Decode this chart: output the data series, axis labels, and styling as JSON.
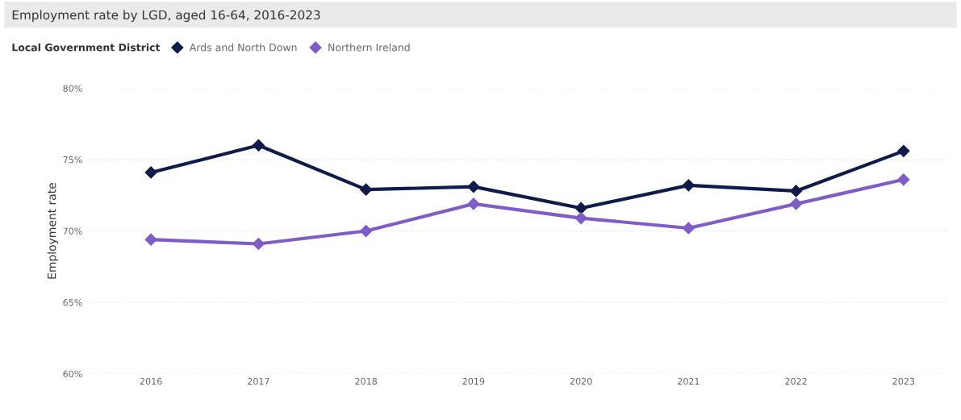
{
  "chart_data": {
    "type": "line",
    "title": "Employment rate by LGD, aged 16-64, 2016-2023",
    "legend_title": "Local Government District",
    "ylabel": "Employment rate",
    "categories": [
      "2016",
      "2017",
      "2018",
      "2019",
      "2020",
      "2021",
      "2022",
      "2023"
    ],
    "series": [
      {
        "name": "Ards and North Down",
        "color": "#0f1b4a",
        "values": [
          74.1,
          76.0,
          72.9,
          73.1,
          71.6,
          73.2,
          72.8,
          75.6
        ]
      },
      {
        "name": "Northern Ireland",
        "color": "#7f5cc6",
        "values": [
          69.4,
          69.1,
          70.0,
          71.9,
          70.9,
          70.2,
          71.9,
          73.6
        ]
      }
    ],
    "ylim": [
      60,
      80
    ],
    "yticks": [
      {
        "value": 60,
        "label": "60%"
      },
      {
        "value": 65,
        "label": "65%"
      },
      {
        "value": 70,
        "label": "70%"
      },
      {
        "value": 75,
        "label": "75%"
      },
      {
        "value": 80,
        "label": "80%"
      }
    ],
    "grid": "y",
    "legend": "top left",
    "marker": "diamond",
    "line_style": "solid"
  }
}
